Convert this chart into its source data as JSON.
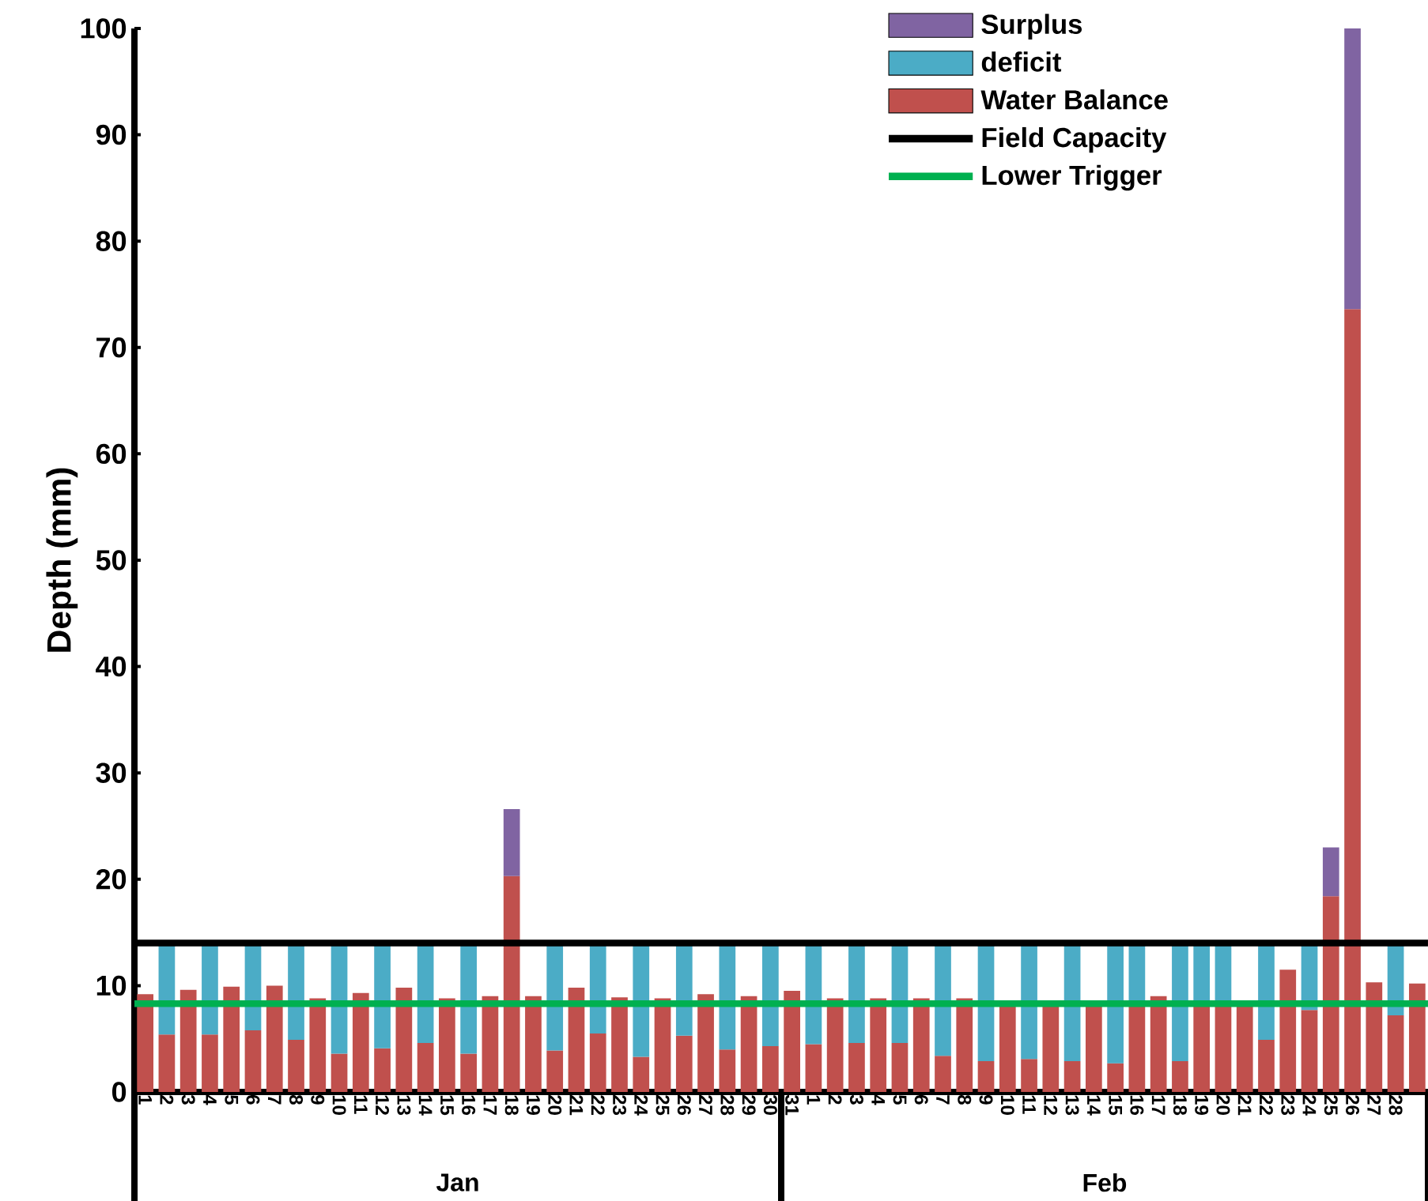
{
  "chart_data": {
    "type": "bar",
    "stacked": true,
    "ylabel": "Depth (mm)",
    "categories": [
      "1",
      "2",
      "3",
      "4",
      "5",
      "6",
      "7",
      "8",
      "9",
      "10",
      "11",
      "12",
      "13",
      "14",
      "15",
      "16",
      "17",
      "18",
      "19",
      "20",
      "21",
      "22",
      "23",
      "24",
      "25",
      "26",
      "27",
      "28",
      "29",
      "30",
      "31",
      "1",
      "2",
      "3",
      "4",
      "5",
      "6",
      "7",
      "8",
      "9",
      "10",
      "11",
      "12",
      "13",
      "14",
      "15",
      "16",
      "17",
      "18",
      "19",
      "20",
      "21",
      "22",
      "23",
      "24",
      "25",
      "26",
      "27",
      "28",
      null
    ],
    "series": [
      {
        "name": "Water Balance",
        "color": "#c0504d",
        "values": [
          9.2,
          5.4,
          9.6,
          5.4,
          9.9,
          5.8,
          10.0,
          4.9,
          8.8,
          3.6,
          9.3,
          4.1,
          9.8,
          4.6,
          8.8,
          3.6,
          9.0,
          20.3,
          9.0,
          3.9,
          9.8,
          5.5,
          8.9,
          3.3,
          8.8,
          5.3,
          9.2,
          4.0,
          9.0,
          4.3,
          9.5,
          4.5,
          8.8,
          4.6,
          8.8,
          4.6,
          8.8,
          3.4,
          8.8,
          2.9,
          8.3,
          3.1,
          8.3,
          2.9,
          8.3,
          2.7,
          8.3,
          9.0,
          2.9,
          8.3,
          8.3,
          8.3,
          4.9,
          11.5,
          7.7,
          18.4,
          73.6,
          10.3,
          7.2,
          10.2
        ]
      },
      {
        "name": "deficit",
        "color": "#4bacc6",
        "values": [
          null,
          8.6,
          null,
          8.6,
          null,
          8.2,
          null,
          9.1,
          null,
          10.4,
          null,
          9.9,
          null,
          9.4,
          null,
          10.4,
          null,
          null,
          null,
          10.1,
          null,
          8.5,
          null,
          10.7,
          null,
          8.7,
          null,
          10.0,
          null,
          9.7,
          null,
          9.5,
          null,
          9.4,
          null,
          9.4,
          null,
          10.6,
          null,
          11.1,
          null,
          10.9,
          null,
          11.1,
          null,
          11.3,
          5.7,
          null,
          11.1,
          5.7,
          5.7,
          null,
          9.1,
          null,
          6.3,
          null,
          null,
          null,
          6.8,
          null
        ]
      },
      {
        "name": "Surplus",
        "color": "#8064a2",
        "values": [
          null,
          null,
          null,
          null,
          null,
          null,
          null,
          null,
          null,
          null,
          null,
          null,
          null,
          null,
          null,
          null,
          null,
          6.3,
          null,
          null,
          null,
          null,
          null,
          null,
          null,
          null,
          null,
          null,
          null,
          null,
          null,
          null,
          null,
          null,
          null,
          null,
          null,
          null,
          null,
          null,
          null,
          null,
          null,
          null,
          null,
          null,
          null,
          null,
          null,
          null,
          null,
          null,
          null,
          null,
          null,
          4.6,
          26.4,
          null,
          null,
          null
        ]
      }
    ],
    "ref_lines": [
      {
        "axis": "y",
        "value": 14,
        "label": "Field Capacity",
        "color": "#000000"
      },
      {
        "axis": "y",
        "value": 8.3,
        "label": "Lower Trigger",
        "color": "#00b050"
      }
    ],
    "annotations": [
      "Jan",
      "Feb"
    ],
    "ylim": [
      0,
      100
    ],
    "yticks": [
      0,
      10,
      20,
      30,
      40,
      50,
      60,
      70,
      80,
      90,
      100
    ],
    "legend": "top right"
  }
}
